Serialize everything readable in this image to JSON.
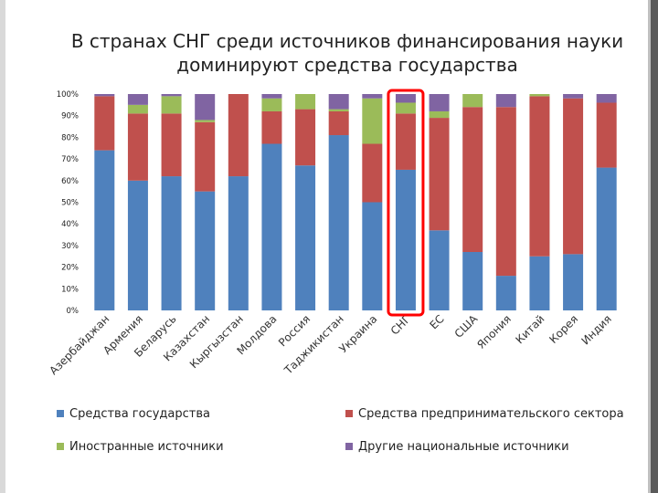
{
  "title_line1": "В странах СНГ среди источников финансирования науки",
  "title_line2": "доминируют средства государства",
  "colors": {
    "gov": "#4f81bd",
    "business": "#c0504d",
    "foreign": "#9bbb59",
    "other": "#8064a2",
    "highlight": "#ff0000"
  },
  "chart_data": {
    "type": "bar",
    "stacked": true,
    "percent": true,
    "categories": [
      "Азербайджан",
      "Армения",
      "Беларусь",
      "Казахстан",
      "Кыргызстан",
      "Молдова",
      "Россия",
      "Таджикистан",
      "Украина",
      "СНГ",
      "ЕС",
      "США",
      "Япония",
      "Китай",
      "Корея",
      "Индия"
    ],
    "series": [
      {
        "name": "Средства государства",
        "values": [
          74,
          60,
          62,
          55,
          62,
          77,
          67,
          81,
          50,
          65,
          37,
          27,
          16,
          25,
          26,
          66
        ]
      },
      {
        "name": "Средства предпринимательского сектора",
        "values": [
          25,
          31,
          29,
          32,
          38,
          15,
          26,
          11,
          27,
          26,
          52,
          67,
          78,
          74,
          72,
          30
        ]
      },
      {
        "name": "Иностранные источники",
        "values": [
          0,
          4,
          8,
          1,
          0,
          6,
          7,
          1,
          21,
          5,
          3,
          6,
          0,
          1,
          0,
          0
        ]
      },
      {
        "name": "Другие национальные источники",
        "values": [
          1,
          5,
          1,
          12,
          0,
          2,
          0,
          7,
          2,
          4,
          8,
          0,
          6,
          0,
          2,
          4
        ]
      }
    ],
    "yticks": [
      "0%",
      "10%",
      "20%",
      "30%",
      "40%",
      "50%",
      "60%",
      "70%",
      "80%",
      "90%",
      "100%"
    ],
    "ylim": [
      0,
      100
    ],
    "grid": false,
    "legend_position": "bottom",
    "highlighted_category": "СНГ"
  }
}
